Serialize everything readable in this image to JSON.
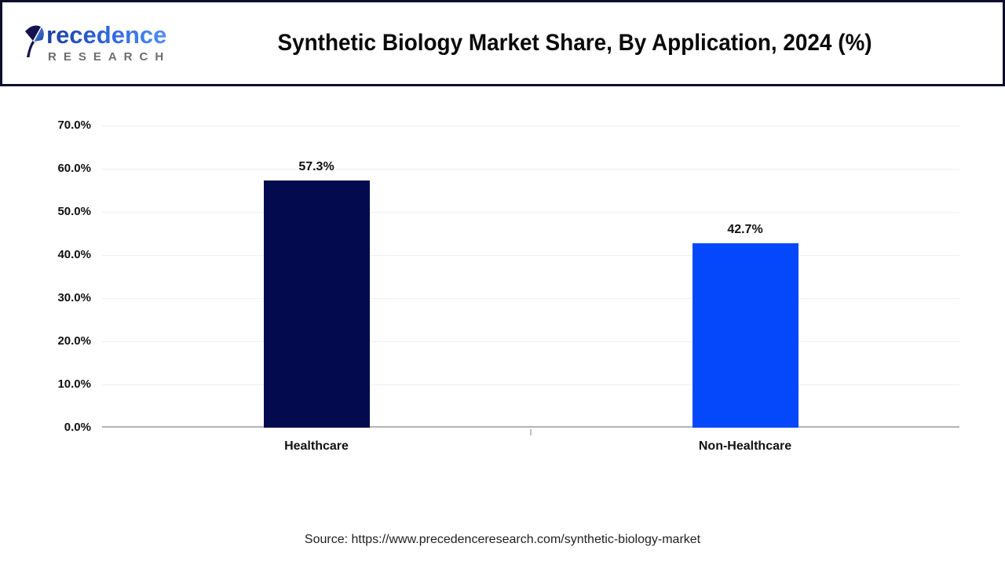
{
  "header": {
    "logo": {
      "brand": "Precedence",
      "brand_text_after_icon": "recedence",
      "brand_sub": "RESEARCH"
    },
    "title": "Synthetic Biology Market Share, By Application, 2024 (%)"
  },
  "chart_data": {
    "type": "bar",
    "title": "Synthetic Biology Market Share, By Application, 2024 (%)",
    "categories": [
      "Healthcare",
      "Non-Healthcare"
    ],
    "values": [
      57.3,
      42.7
    ],
    "value_labels": [
      "57.3%",
      "42.7%"
    ],
    "bar_colors": [
      "#030a4e",
      "#0548fb"
    ],
    "xlabel": "",
    "ylabel": "",
    "ylim": [
      0,
      70
    ],
    "yticks": [
      0,
      10,
      20,
      30,
      40,
      50,
      60,
      70
    ],
    "ytick_labels": [
      "0.0%",
      "10.0%",
      "20.0%",
      "30.0%",
      "40.0%",
      "50.0%",
      "60.0%",
      "70.0%"
    ],
    "grid": true,
    "legend_position": "none"
  },
  "footer": {
    "source": "Source: https://www.precedenceresearch.com/synthetic-biology-market"
  },
  "colors": {
    "bar_healthcare": "#030a4e",
    "bar_non_healthcare": "#0548fb",
    "header_border": "#0e0e2c",
    "axis_line": "#b3b3b3",
    "gridline": "#efefef",
    "logo_blue_dark": "#1d3f9e",
    "logo_blue_light": "#4f8df5",
    "logo_gray": "#6e6e6e",
    "text": "#111111"
  }
}
